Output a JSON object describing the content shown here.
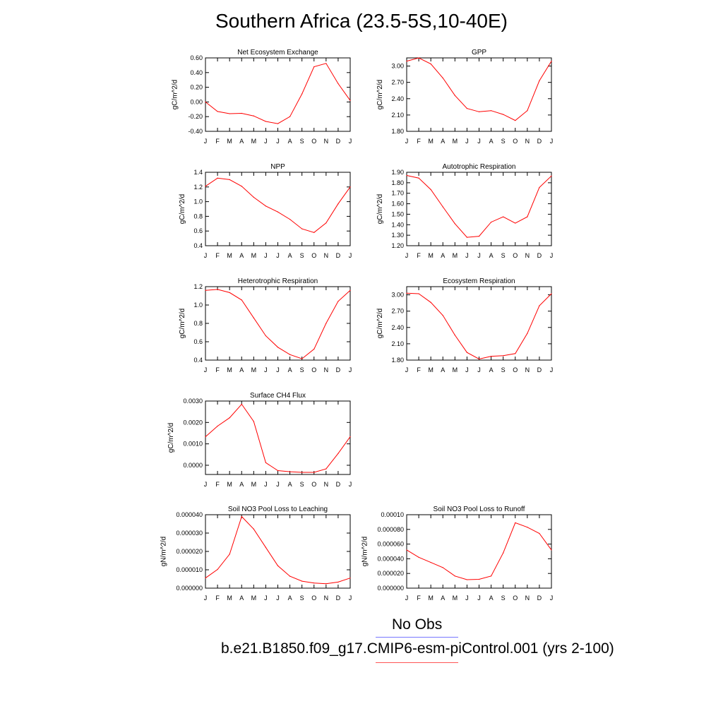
{
  "page": {
    "title": "Southern Africa (23.5-5S,10-40E)"
  },
  "legend": {
    "items": [
      {
        "label": "No Obs",
        "color": "#7777ff"
      },
      {
        "label": "b.e21.B1850.f09_g17.CMIP6-esm-piControl.001 (yrs 2-100)",
        "color": "#ff5555"
      }
    ]
  },
  "colors": {
    "series": "#ff0000",
    "axis": "#000000"
  },
  "chart_data": [
    {
      "type": "line",
      "title": "Net Ecosystem Exchange",
      "ylabel": "gC/m^2/d",
      "categories": [
        "J",
        "F",
        "M",
        "A",
        "M",
        "J",
        "J",
        "A",
        "S",
        "O",
        "N",
        "D",
        "J"
      ],
      "yticks": [
        "0.60",
        "0.40",
        "0.20",
        "0.00",
        "-0.20",
        "-0.40"
      ],
      "ylim": [
        -0.4,
        0.6
      ],
      "values": [
        0.0,
        -0.13,
        -0.16,
        -0.155,
        -0.19,
        -0.265,
        -0.295,
        -0.2,
        0.11,
        0.48,
        0.525,
        0.25,
        0.02
      ]
    },
    {
      "type": "line",
      "title": "GPP",
      "ylabel": "gC/m^2/d",
      "categories": [
        "J",
        "F",
        "M",
        "A",
        "M",
        "J",
        "J",
        "A",
        "S",
        "O",
        "N",
        "D",
        "J"
      ],
      "yticks": [
        "3.00",
        "2.70",
        "2.40",
        "2.10",
        "1.80"
      ],
      "ylim": [
        1.8,
        3.15
      ],
      "values": [
        3.09,
        3.15,
        3.04,
        2.78,
        2.46,
        2.22,
        2.16,
        2.18,
        2.11,
        2.0,
        2.18,
        2.73,
        3.09
      ]
    },
    {
      "type": "line",
      "title": "NPP",
      "ylabel": "gC/m^2/d",
      "categories": [
        "J",
        "F",
        "M",
        "A",
        "M",
        "J",
        "J",
        "A",
        "S",
        "O",
        "N",
        "D",
        "J"
      ],
      "yticks": [
        "1.4",
        "1.2",
        "1.0",
        "0.8",
        "0.6",
        "0.4"
      ],
      "ylim": [
        0.4,
        1.4
      ],
      "values": [
        1.21,
        1.32,
        1.3,
        1.21,
        1.06,
        0.94,
        0.86,
        0.76,
        0.63,
        0.58,
        0.71,
        0.97,
        1.2
      ]
    },
    {
      "type": "line",
      "title": "Autotrophic Respiration",
      "ylabel": "gC/m^2/d",
      "categories": [
        "J",
        "F",
        "M",
        "A",
        "M",
        "J",
        "J",
        "A",
        "S",
        "O",
        "N",
        "D",
        "J"
      ],
      "yticks": [
        "1.90",
        "1.80",
        "1.70",
        "1.60",
        "1.50",
        "1.40",
        "1.30",
        "1.20"
      ],
      "ylim": [
        1.2,
        1.9
      ],
      "values": [
        1.87,
        1.845,
        1.735,
        1.57,
        1.41,
        1.28,
        1.29,
        1.425,
        1.475,
        1.415,
        1.475,
        1.755,
        1.865
      ]
    },
    {
      "type": "line",
      "title": "Heterotrophic Respiration",
      "ylabel": "gC/m^2/d",
      "categories": [
        "J",
        "F",
        "M",
        "A",
        "M",
        "J",
        "J",
        "A",
        "S",
        "O",
        "N",
        "D",
        "J"
      ],
      "yticks": [
        "1.2",
        "1.0",
        "0.8",
        "0.6",
        "0.4"
      ],
      "ylim": [
        0.4,
        1.2
      ],
      "values": [
        1.16,
        1.17,
        1.135,
        1.055,
        0.86,
        0.665,
        0.54,
        0.46,
        0.415,
        0.52,
        0.8,
        1.04,
        1.16
      ]
    },
    {
      "type": "line",
      "title": "Ecosystem Respiration",
      "ylabel": "gC/m^2/d",
      "categories": [
        "J",
        "F",
        "M",
        "A",
        "M",
        "J",
        "J",
        "A",
        "S",
        "O",
        "N",
        "D",
        "J"
      ],
      "yticks": [
        "3.00",
        "2.70",
        "2.40",
        "2.10",
        "1.80"
      ],
      "ylim": [
        1.8,
        3.15
      ],
      "values": [
        3.03,
        3.02,
        2.86,
        2.62,
        2.26,
        1.94,
        1.82,
        1.87,
        1.88,
        1.92,
        2.29,
        2.8,
        3.02
      ]
    },
    {
      "type": "line",
      "title": "Surface CH4 Flux",
      "ylabel": "gC/m^2/d",
      "categories": [
        "J",
        "F",
        "M",
        "A",
        "M",
        "J",
        "J",
        "A",
        "S",
        "O",
        "N",
        "D",
        "J"
      ],
      "yticks": [
        "0.0030",
        "0.0020",
        "0.0010",
        "0.0000"
      ],
      "ylim": [
        -0.00043,
        0.003
      ],
      "values": [
        0.00133,
        0.00183,
        0.00222,
        0.00285,
        0.00205,
        0.00012,
        -0.00025,
        -0.0003,
        -0.00033,
        -0.00033,
        -0.00017,
        0.00055,
        0.00133
      ]
    },
    {
      "type": "line",
      "title": "Soil NO3 Pool Loss to Leaching",
      "ylabel": "gN/m^2/d",
      "categories": [
        "J",
        "F",
        "M",
        "A",
        "M",
        "J",
        "J",
        "A",
        "S",
        "O",
        "N",
        "D",
        "J"
      ],
      "yticks": [
        "0.000040",
        "0.000030",
        "0.000020",
        "0.000010",
        "0.000000"
      ],
      "ylim": [
        0,
        4e-05
      ],
      "values": [
        5.5e-06,
        1.02e-05,
        1.85e-05,
        3.9e-05,
        3.22e-05,
        2.22e-05,
        1.22e-05,
        6.5e-06,
        3.8e-06,
        2.8e-06,
        2.4e-06,
        3.3e-06,
        5.5e-06
      ]
    },
    {
      "type": "line",
      "title": "Soil NO3 Pool Loss to Runoff",
      "ylabel": "gN/m^2/d",
      "categories": [
        "J",
        "F",
        "M",
        "A",
        "M",
        "J",
        "J",
        "A",
        "S",
        "O",
        "N",
        "D",
        "J"
      ],
      "yticks": [
        "0.00010",
        "0.000080",
        "0.000060",
        "0.000040",
        "0.000020",
        "0.000000"
      ],
      "ylim": [
        0,
        0.0001
      ],
      "values": [
        5.2e-05,
        4.2e-05,
        3.5e-05,
        2.8e-05,
        1.65e-05,
        1.15e-05,
        1.2e-05,
        1.65e-05,
        4.8e-05,
        8.9e-05,
        8.3e-05,
        7.45e-05,
        5.2e-05
      ]
    }
  ]
}
